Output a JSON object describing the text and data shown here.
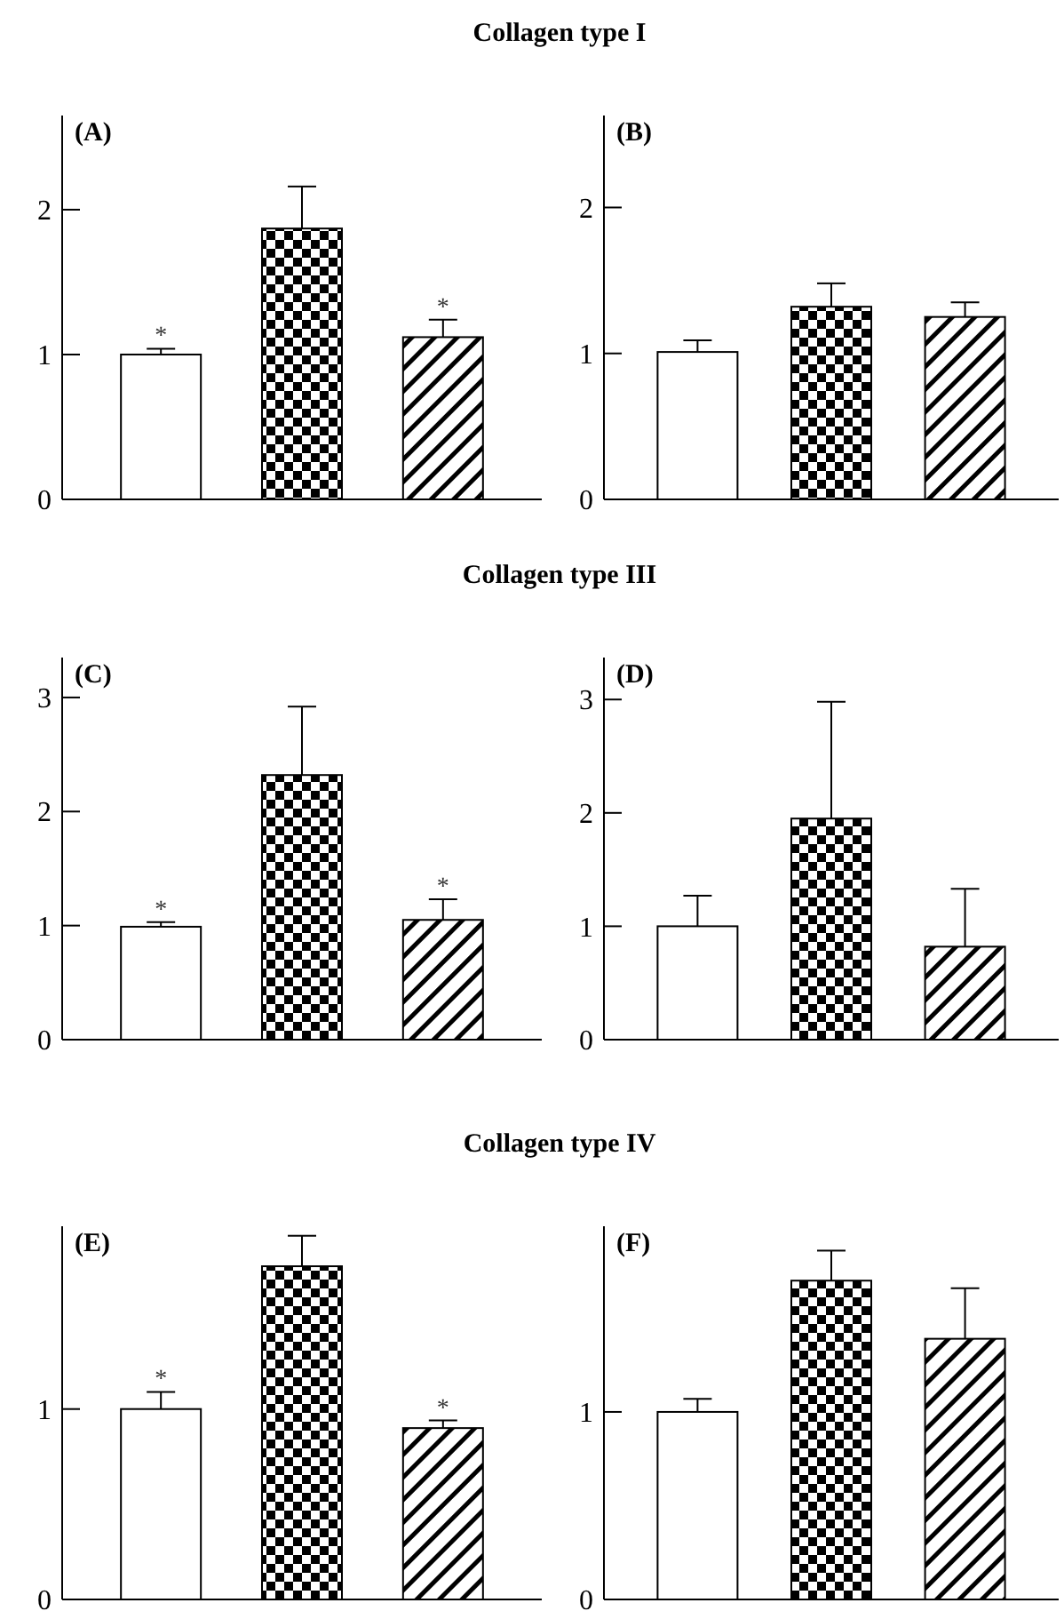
{
  "chart_data": [
    {
      "type": "bar",
      "title": "Collagen type I",
      "annotations": [
        "(A)"
      ],
      "categories": [
        null,
        null,
        null
      ],
      "values": [
        1.0,
        1.87,
        1.12
      ],
      "errors": [
        0.04,
        0.29,
        0.12
      ],
      "value_labels": [
        "*",
        null,
        "*"
      ],
      "colors": [
        "#ffffff",
        "#000000",
        "#000000"
      ],
      "ylim": [
        0,
        2.65
      ],
      "yticks": [
        0,
        1,
        2
      ]
    },
    {
      "type": "bar",
      "annotations": [
        "(B)"
      ],
      "categories": [
        null,
        null,
        null
      ],
      "values": [
        1.01,
        1.32,
        1.25
      ],
      "errors": [
        0.08,
        0.16,
        0.1
      ],
      "colors": [
        "#ffffff",
        "#000000",
        "#000000"
      ],
      "ylim": [
        0,
        2.63
      ],
      "yticks": [
        0,
        1,
        2
      ]
    },
    {
      "type": "bar",
      "title": "Collagen type III",
      "annotations": [
        "(C)"
      ],
      "categories": [
        null,
        null,
        null
      ],
      "values": [
        0.99,
        2.32,
        1.05
      ],
      "errors": [
        0.04,
        0.6,
        0.18
      ],
      "value_labels": [
        "*",
        null,
        "*"
      ],
      "colors": [
        "#ffffff",
        "#000000",
        "#000000"
      ],
      "ylim": [
        0,
        3.35
      ],
      "yticks": [
        0,
        1,
        2,
        3
      ]
    },
    {
      "type": "bar",
      "annotations": [
        "(D)"
      ],
      "categories": [
        null,
        null,
        null
      ],
      "values": [
        1.0,
        1.95,
        0.82
      ],
      "errors": [
        0.27,
        1.03,
        0.51
      ],
      "colors": [
        "#ffffff",
        "#000000",
        "#000000"
      ],
      "ylim": [
        0,
        3.37
      ],
      "yticks": [
        0,
        1,
        2,
        3
      ]
    },
    {
      "type": "bar",
      "title": "Collagen type IV",
      "annotations": [
        "(E)"
      ],
      "categories": [
        null,
        null,
        null
      ],
      "values": [
        1.0,
        1.75,
        0.9
      ],
      "errors": [
        0.09,
        0.16,
        0.04
      ],
      "value_labels": [
        "*",
        null,
        "*"
      ],
      "colors": [
        "#ffffff",
        "#000000",
        "#000000"
      ],
      "ylim": [
        0,
        1.96
      ],
      "yticks": [
        0,
        1
      ]
    },
    {
      "type": "bar",
      "annotations": [
        "(F)"
      ],
      "categories": [
        null,
        null,
        null
      ],
      "values": [
        1.0,
        1.7,
        1.39
      ],
      "errors": [
        0.07,
        0.16,
        0.27
      ],
      "colors": [
        "#ffffff",
        "#000000",
        "#000000"
      ],
      "ylim": [
        0,
        1.99
      ],
      "yticks": [
        0,
        1
      ]
    }
  ]
}
